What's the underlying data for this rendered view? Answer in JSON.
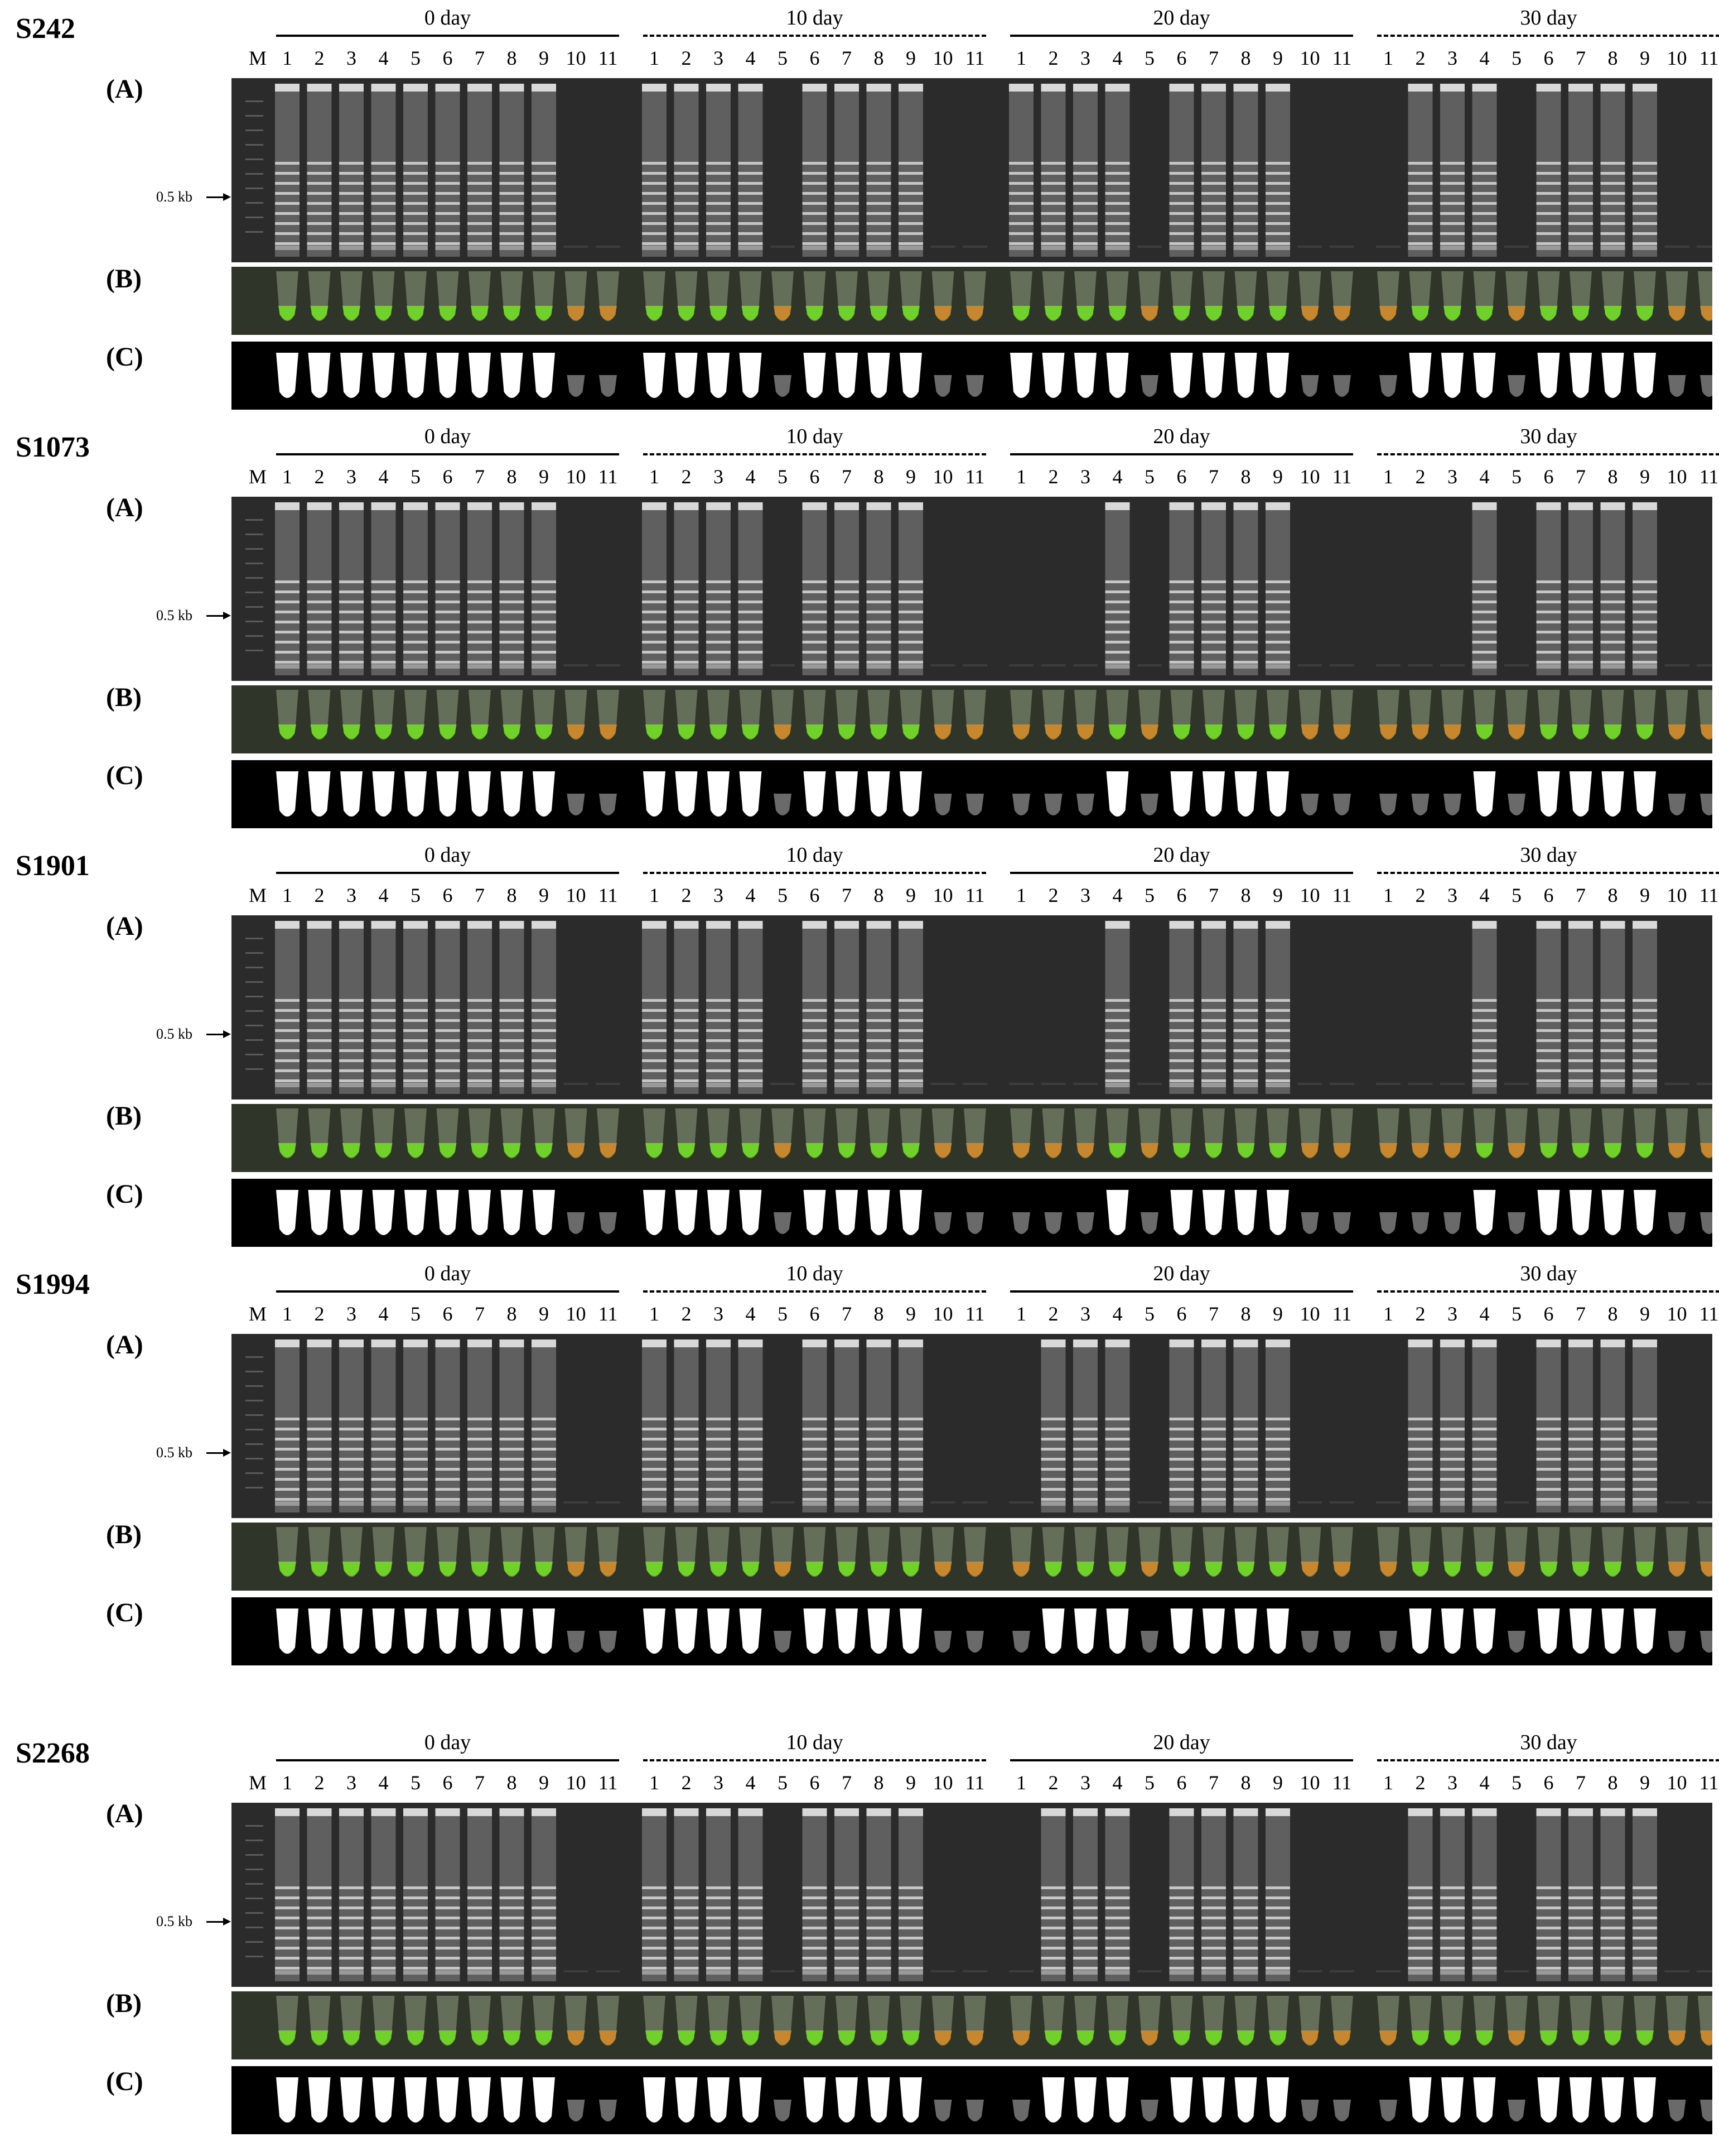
{
  "lanes": [
    "1",
    "2",
    "3",
    "4",
    "5",
    "6",
    "7",
    "8",
    "9",
    "10",
    "11"
  ],
  "marker_label": "M",
  "size_marker": "0.5 kb",
  "row_labels": {
    "a": "(A)",
    "b": "(B)",
    "c": "(C)"
  },
  "panels": [
    {
      "sample": "S242",
      "days": [
        {
          "label": "0 day",
          "line": "solid",
          "positive_lanes": [
            1,
            2,
            3,
            4,
            5,
            6,
            7,
            8,
            9
          ]
        },
        {
          "label": "10 day",
          "line": "dashed",
          "positive_lanes": [
            1,
            2,
            3,
            4,
            6,
            7,
            8,
            9
          ]
        },
        {
          "label": "20 day",
          "line": "solid",
          "positive_lanes": [
            1,
            2,
            3,
            4,
            6,
            7,
            8,
            9
          ]
        },
        {
          "label": "30 day",
          "line": "dashed",
          "positive_lanes": [
            2,
            3,
            4,
            6,
            7,
            8,
            9
          ]
        }
      ]
    },
    {
      "sample": "S1073",
      "days": [
        {
          "label": "0 day",
          "line": "solid",
          "positive_lanes": [
            1,
            2,
            3,
            4,
            5,
            6,
            7,
            8,
            9
          ]
        },
        {
          "label": "10 day",
          "line": "dashed",
          "positive_lanes": [
            1,
            2,
            3,
            4,
            6,
            7,
            8,
            9
          ]
        },
        {
          "label": "20 day",
          "line": "solid",
          "positive_lanes": [
            4,
            6,
            7,
            8,
            9
          ]
        },
        {
          "label": "30 day",
          "line": "dashed",
          "positive_lanes": [
            4,
            6,
            7,
            8,
            9
          ]
        }
      ]
    },
    {
      "sample": "S1901",
      "days": [
        {
          "label": "0 day",
          "line": "solid",
          "positive_lanes": [
            1,
            2,
            3,
            4,
            5,
            6,
            7,
            8,
            9
          ]
        },
        {
          "label": "10 day",
          "line": "dashed",
          "positive_lanes": [
            1,
            2,
            3,
            4,
            6,
            7,
            8,
            9
          ]
        },
        {
          "label": "20 day",
          "line": "solid",
          "positive_lanes": [
            4,
            6,
            7,
            8,
            9
          ]
        },
        {
          "label": "30 day",
          "line": "dashed",
          "positive_lanes": [
            4,
            6,
            7,
            8,
            9
          ]
        }
      ]
    },
    {
      "sample": "S1994",
      "days": [
        {
          "label": "0 day",
          "line": "solid",
          "positive_lanes": [
            1,
            2,
            3,
            4,
            5,
            6,
            7,
            8,
            9
          ]
        },
        {
          "label": "10 day",
          "line": "dashed",
          "positive_lanes": [
            1,
            2,
            3,
            4,
            6,
            7,
            8,
            9
          ]
        },
        {
          "label": "20 day",
          "line": "solid",
          "positive_lanes": [
            2,
            3,
            4,
            6,
            7,
            8,
            9
          ]
        },
        {
          "label": "30 day",
          "line": "dashed",
          "positive_lanes": [
            2,
            3,
            4,
            6,
            7,
            8,
            9
          ]
        }
      ]
    },
    {
      "sample": "S2268",
      "days": [
        {
          "label": "0 day",
          "line": "solid",
          "positive_lanes": [
            1,
            2,
            3,
            4,
            5,
            6,
            7,
            8,
            9
          ]
        },
        {
          "label": "10 day",
          "line": "dashed",
          "positive_lanes": [
            1,
            2,
            3,
            4,
            6,
            7,
            8,
            9
          ]
        },
        {
          "label": "20 day",
          "line": "solid",
          "positive_lanes": [
            2,
            3,
            4,
            6,
            7,
            8,
            9
          ]
        },
        {
          "label": "30 day",
          "line": "dashed",
          "positive_lanes": [
            2,
            3,
            4,
            6,
            7,
            8,
            9
          ]
        }
      ]
    }
  ],
  "colors": {
    "gel_bg": "#2b2b2b",
    "band": "#d8d8d8",
    "tube_green": "#6fd12a",
    "tube_orange": "#c7872e",
    "tube_bg": "#2f3528",
    "fluor_bg": "#000000",
    "fluor_on": "#ffffff",
    "fluor_off": "#6a6a6a"
  }
}
